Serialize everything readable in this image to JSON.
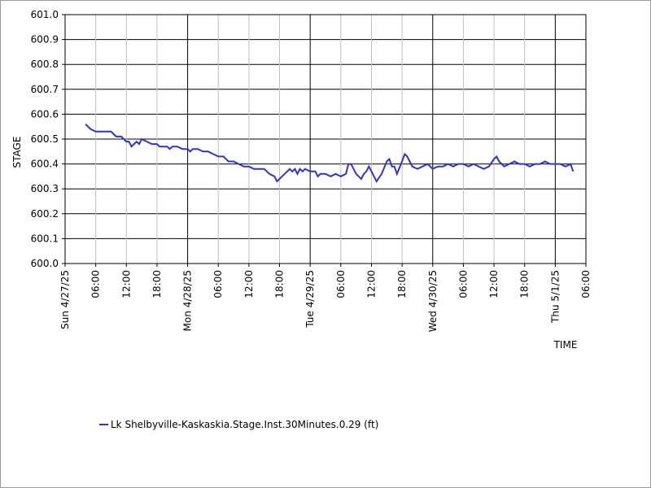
{
  "chart_data": {
    "type": "line",
    "title": "",
    "ylabel": "STAGE",
    "xlabel": "TIME",
    "ylim": [
      600.0,
      601.0
    ],
    "y_ticks": [
      "600.0",
      "600.1",
      "600.2",
      "600.3",
      "600.4",
      "600.5",
      "600.6",
      "600.7",
      "600.8",
      "600.9",
      "601.0"
    ],
    "x_range": [
      "2025-04-27 00:00",
      "2025-05-01 06:00"
    ],
    "x_tick_labels": [
      {
        "t": "2025-04-27 00:00",
        "label": "Sun 4/27/25",
        "major": true
      },
      {
        "t": "2025-04-27 06:00",
        "label": "06:00",
        "major": false
      },
      {
        "t": "2025-04-27 12:00",
        "label": "12:00",
        "major": false
      },
      {
        "t": "2025-04-27 18:00",
        "label": "18:00",
        "major": false
      },
      {
        "t": "2025-04-28 00:00",
        "label": "Mon 4/28/25",
        "major": true
      },
      {
        "t": "2025-04-28 06:00",
        "label": "06:00",
        "major": false
      },
      {
        "t": "2025-04-28 12:00",
        "label": "12:00",
        "major": false
      },
      {
        "t": "2025-04-28 18:00",
        "label": "18:00",
        "major": false
      },
      {
        "t": "2025-04-29 00:00",
        "label": "Tue 4/29/25",
        "major": true
      },
      {
        "t": "2025-04-29 06:00",
        "label": "06:00",
        "major": false
      },
      {
        "t": "2025-04-29 12:00",
        "label": "12:00",
        "major": false
      },
      {
        "t": "2025-04-29 18:00",
        "label": "18:00",
        "major": false
      },
      {
        "t": "2025-04-30 00:00",
        "label": "Wed 4/30/25",
        "major": true
      },
      {
        "t": "2025-04-30 06:00",
        "label": "06:00",
        "major": false
      },
      {
        "t": "2025-04-30 12:00",
        "label": "12:00",
        "major": false
      },
      {
        "t": "2025-04-30 18:00",
        "label": "18:00",
        "major": false
      },
      {
        "t": "2025-05-01 00:00",
        "label": "Thu 5/1/25",
        "major": true
      },
      {
        "t": "2025-05-01 06:00",
        "label": "06:00",
        "major": false
      }
    ],
    "grid": true,
    "legend_position": "bottom-left",
    "series": [
      {
        "name": "Lk Shelbyville-Kaskaskia.Stage.Inst.30Minutes.0.29 (ft)",
        "color": "#3333cc",
        "points": [
          [
            "2025-04-27 04:00",
            600.56
          ],
          [
            "2025-04-27 05:00",
            600.54
          ],
          [
            "2025-04-27 06:00",
            600.53
          ],
          [
            "2025-04-27 07:00",
            600.53
          ],
          [
            "2025-04-27 08:00",
            600.53
          ],
          [
            "2025-04-27 09:00",
            600.53
          ],
          [
            "2025-04-27 10:00",
            600.51
          ],
          [
            "2025-04-27 11:00",
            600.51
          ],
          [
            "2025-04-27 12:00",
            600.49
          ],
          [
            "2025-04-27 12:30",
            600.49
          ],
          [
            "2025-04-27 13:00",
            600.47
          ],
          [
            "2025-04-27 14:00",
            600.49
          ],
          [
            "2025-04-27 14:30",
            600.48
          ],
          [
            "2025-04-27 15:00",
            600.5
          ],
          [
            "2025-04-27 16:00",
            600.49
          ],
          [
            "2025-04-27 17:00",
            600.48
          ],
          [
            "2025-04-27 18:00",
            600.48
          ],
          [
            "2025-04-27 18:30",
            600.47
          ],
          [
            "2025-04-27 19:00",
            600.47
          ],
          [
            "2025-04-27 20:00",
            600.47
          ],
          [
            "2025-04-27 20:30",
            600.46
          ],
          [
            "2025-04-27 21:00",
            600.47
          ],
          [
            "2025-04-27 22:00",
            600.47
          ],
          [
            "2025-04-27 23:00",
            600.46
          ],
          [
            "2025-04-28 00:00",
            600.46
          ],
          [
            "2025-04-28 00:30",
            600.45
          ],
          [
            "2025-04-28 01:00",
            600.46
          ],
          [
            "2025-04-28 02:00",
            600.46
          ],
          [
            "2025-04-28 03:00",
            600.45
          ],
          [
            "2025-04-28 04:00",
            600.45
          ],
          [
            "2025-04-28 05:00",
            600.44
          ],
          [
            "2025-04-28 06:00",
            600.43
          ],
          [
            "2025-04-28 07:00",
            600.43
          ],
          [
            "2025-04-28 08:00",
            600.41
          ],
          [
            "2025-04-28 09:00",
            600.41
          ],
          [
            "2025-04-28 10:00",
            600.4
          ],
          [
            "2025-04-28 11:00",
            600.39
          ],
          [
            "2025-04-28 12:00",
            600.39
          ],
          [
            "2025-04-28 13:00",
            600.38
          ],
          [
            "2025-04-28 14:00",
            600.38
          ],
          [
            "2025-04-28 15:00",
            600.38
          ],
          [
            "2025-04-28 16:00",
            600.36
          ],
          [
            "2025-04-28 17:00",
            600.35
          ],
          [
            "2025-04-28 17:30",
            600.33
          ],
          [
            "2025-04-28 18:00",
            600.34
          ],
          [
            "2025-04-28 19:00",
            600.36
          ],
          [
            "2025-04-28 20:00",
            600.38
          ],
          [
            "2025-04-28 20:30",
            600.37
          ],
          [
            "2025-04-28 21:00",
            600.38
          ],
          [
            "2025-04-28 21:30",
            600.36
          ],
          [
            "2025-04-28 22:00",
            600.38
          ],
          [
            "2025-04-28 22:30",
            600.37
          ],
          [
            "2025-04-28 23:00",
            600.38
          ],
          [
            "2025-04-29 00:00",
            600.37
          ],
          [
            "2025-04-29 01:00",
            600.37
          ],
          [
            "2025-04-29 01:30",
            600.35
          ],
          [
            "2025-04-29 02:00",
            600.36
          ],
          [
            "2025-04-29 03:00",
            600.36
          ],
          [
            "2025-04-29 04:00",
            600.35
          ],
          [
            "2025-04-29 05:00",
            600.36
          ],
          [
            "2025-04-29 06:00",
            600.35
          ],
          [
            "2025-04-29 07:00",
            600.36
          ],
          [
            "2025-04-29 07:30",
            600.4
          ],
          [
            "2025-04-29 08:00",
            600.4
          ],
          [
            "2025-04-29 09:00",
            600.36
          ],
          [
            "2025-04-29 10:00",
            600.34
          ],
          [
            "2025-04-29 10:30",
            600.36
          ],
          [
            "2025-04-29 11:00",
            600.37
          ],
          [
            "2025-04-29 11:30",
            600.39
          ],
          [
            "2025-04-29 12:00",
            600.37
          ],
          [
            "2025-04-29 13:00",
            600.33
          ],
          [
            "2025-04-29 14:00",
            600.36
          ],
          [
            "2025-04-29 15:00",
            600.41
          ],
          [
            "2025-04-29 15:30",
            600.42
          ],
          [
            "2025-04-29 16:00",
            600.39
          ],
          [
            "2025-04-29 16:30",
            600.39
          ],
          [
            "2025-04-29 17:00",
            600.36
          ],
          [
            "2025-04-29 18:00",
            600.41
          ],
          [
            "2025-04-29 18:30",
            600.44
          ],
          [
            "2025-04-29 19:00",
            600.43
          ],
          [
            "2025-04-29 20:00",
            600.39
          ],
          [
            "2025-04-29 21:00",
            600.38
          ],
          [
            "2025-04-29 22:00",
            600.39
          ],
          [
            "2025-04-29 23:00",
            600.4
          ],
          [
            "2025-04-30 00:00",
            600.38
          ],
          [
            "2025-04-30 01:00",
            600.39
          ],
          [
            "2025-04-30 02:00",
            600.39
          ],
          [
            "2025-04-30 03:00",
            600.4
          ],
          [
            "2025-04-30 04:00",
            600.39
          ],
          [
            "2025-04-30 05:00",
            600.4
          ],
          [
            "2025-04-30 06:00",
            600.4
          ],
          [
            "2025-04-30 07:00",
            600.39
          ],
          [
            "2025-04-30 08:00",
            600.4
          ],
          [
            "2025-04-30 09:00",
            600.39
          ],
          [
            "2025-04-30 10:00",
            600.38
          ],
          [
            "2025-04-30 11:00",
            600.39
          ],
          [
            "2025-04-30 12:00",
            600.42
          ],
          [
            "2025-04-30 12:30",
            600.43
          ],
          [
            "2025-04-30 13:00",
            600.41
          ],
          [
            "2025-04-30 14:00",
            600.39
          ],
          [
            "2025-04-30 15:00",
            600.4
          ],
          [
            "2025-04-30 16:00",
            600.41
          ],
          [
            "2025-04-30 17:00",
            600.4
          ],
          [
            "2025-04-30 18:00",
            600.4
          ],
          [
            "2025-04-30 19:00",
            600.39
          ],
          [
            "2025-04-30 20:00",
            600.4
          ],
          [
            "2025-04-30 21:00",
            600.4
          ],
          [
            "2025-04-30 22:00",
            600.41
          ],
          [
            "2025-04-30 23:00",
            600.4
          ],
          [
            "2025-05-01 00:00",
            600.4
          ],
          [
            "2025-05-01 01:00",
            600.4
          ],
          [
            "2025-05-01 02:00",
            600.39
          ],
          [
            "2025-05-01 03:00",
            600.4
          ],
          [
            "2025-05-01 03:30",
            600.37
          ]
        ]
      }
    ]
  }
}
